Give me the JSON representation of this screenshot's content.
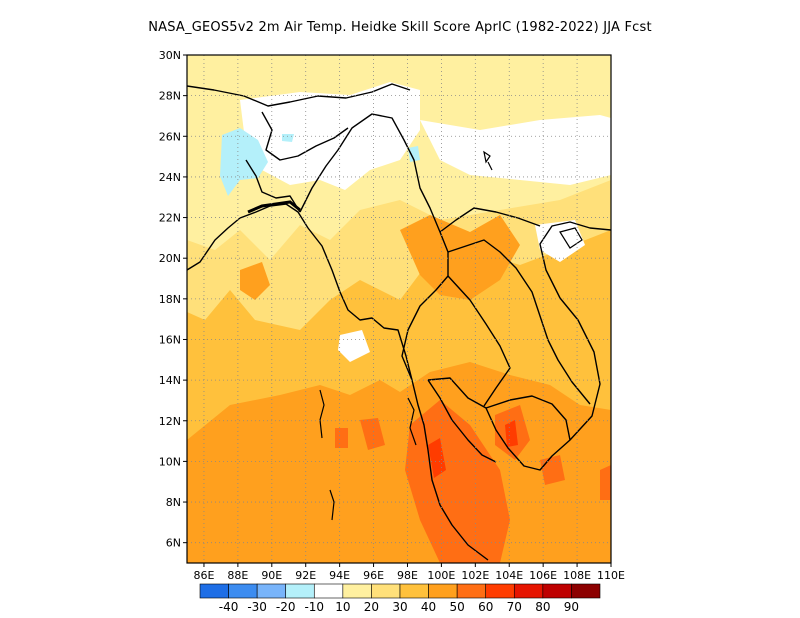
{
  "title": "NASA_GEOS5v2  2m Air Temp. Heidke Skill Score AprIC (1982-2022) JJA Fcst",
  "map": {
    "lon_range": [
      85,
      110
    ],
    "lat_range": [
      5,
      30
    ],
    "lon_ticks": [
      "86E",
      "88E",
      "90E",
      "92E",
      "94E",
      "96E",
      "98E",
      "100E",
      "102E",
      "104E",
      "106E",
      "108E",
      "110E"
    ],
    "lat_ticks": [
      "6N",
      "8N",
      "10N",
      "12N",
      "14N",
      "16N",
      "18N",
      "20N",
      "22N",
      "24N",
      "26N",
      "28N",
      "30N"
    ],
    "grid": "dotted"
  },
  "colorbar": {
    "colors": [
      "#1e6ee6",
      "#3c8cf0",
      "#78b4fa",
      "#b4f0fa",
      "#ffffff",
      "#fff0a0",
      "#ffe07a",
      "#ffc13c",
      "#ffa01e",
      "#ff6e14",
      "#ff3c00",
      "#e61400",
      "#be0000",
      "#8c0000"
    ],
    "labels": [
      "-40",
      "-30",
      "-20",
      "-10",
      "10",
      "20",
      "30",
      "40",
      "50",
      "60",
      "70",
      "80",
      "90"
    ]
  }
}
